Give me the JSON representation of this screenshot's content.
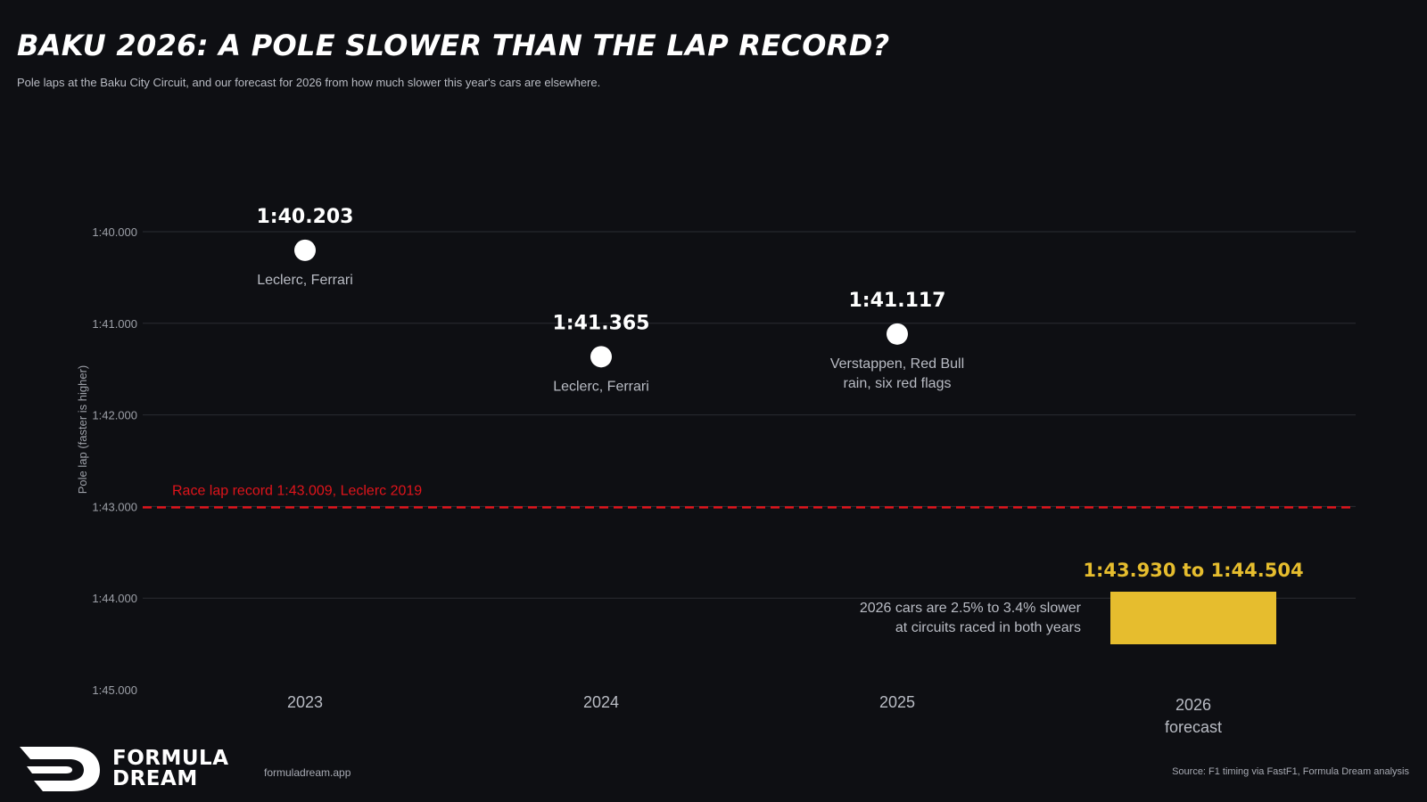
{
  "header": {
    "title": "BAKU 2026: A POLE SLOWER THAN THE LAP RECORD?",
    "subtitle": "Pole laps at the Baku City Circuit, and our forecast for 2026 from how much slower this year's cars are elsewhere."
  },
  "chart_data": {
    "type": "scatter",
    "ylabel": "Pole lap (faster is higher)",
    "y_unit": "seconds",
    "y_range": [
      100,
      105
    ],
    "y_reversed": true,
    "y_ticks": [
      {
        "value": 100,
        "label": "1:40.000"
      },
      {
        "value": 101,
        "label": "1:41.000"
      },
      {
        "value": 102,
        "label": "1:42.000"
      },
      {
        "value": 103,
        "label": "1:43.000"
      },
      {
        "value": 104,
        "label": "1:44.000"
      },
      {
        "value": 105,
        "label": "1:45.000"
      }
    ],
    "grid": true,
    "categories": [
      {
        "label": "2023",
        "sub": ""
      },
      {
        "label": "2024",
        "sub": ""
      },
      {
        "label": "2025",
        "sub": ""
      },
      {
        "label": "2026",
        "sub": "forecast"
      }
    ],
    "points": [
      {
        "category": "2023",
        "value": 100.203,
        "time_label": "1:40.203",
        "note": [
          "Leclerc, Ferrari"
        ]
      },
      {
        "category": "2024",
        "value": 101.365,
        "time_label": "1:41.365",
        "note": [
          "Leclerc, Ferrari"
        ]
      },
      {
        "category": "2025",
        "value": 101.117,
        "time_label": "1:41.117",
        "note": [
          "Verstappen, Red Bull",
          "rain, six red flags"
        ]
      }
    ],
    "forecast": {
      "category": "2026",
      "low": 103.93,
      "high": 104.504,
      "label": "1:43.930 to 1:44.504",
      "note": [
        "2026 cars are 2.5% to 3.4% slower",
        "at circuits raced in both years"
      ],
      "color": "#e6bd2e"
    },
    "reference_line": {
      "value": 103.009,
      "label": "Race lap record 1:43.009, Leclerc 2019",
      "color": "#e0141b"
    },
    "colors": {
      "background": "#0e0f13",
      "point": "#ffffff",
      "grid": "#2a2c33",
      "axis_text": "#9da0a8"
    }
  },
  "footer": {
    "url": "formuladream.app",
    "source": "Source: F1 timing via FastF1, Formula Dream analysis",
    "logo_line1": "FORMULA",
    "logo_line2": "DREAM"
  }
}
